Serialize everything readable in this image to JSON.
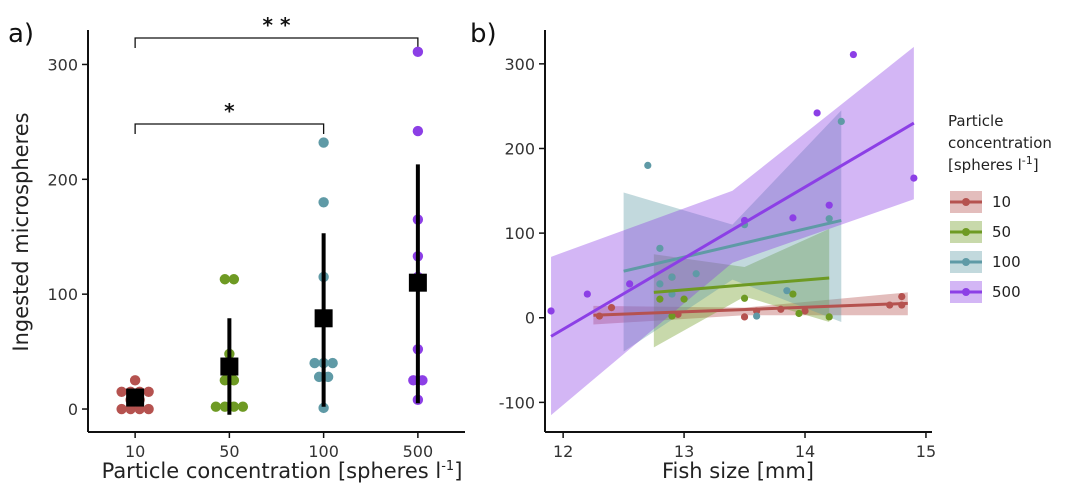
{
  "chart_data": [
    {
      "panel": "a)",
      "type": "scatter",
      "xlabel": "Particle concentration [spheres l",
      "xlabel_sup": "-1",
      "xlabel_end": "]",
      "ylabel": "Ingested microspheres",
      "categories": [
        "10",
        "50",
        "100",
        "500"
      ],
      "ylim": [
        -20,
        330
      ],
      "yticks": [
        0,
        100,
        200,
        300
      ],
      "colors": {
        "10": "#b5524f",
        "50": "#6e9a23",
        "100": "#5f9aa6",
        "500": "#8c3fe6"
      },
      "points": {
        "10": [
          0,
          0,
          0,
          0,
          8,
          8,
          15,
          15,
          15,
          15,
          25
        ],
        "50": [
          2,
          2,
          2,
          2,
          25,
          25,
          40,
          48,
          113,
          113
        ],
        "100": [
          1,
          28,
          28,
          40,
          40,
          40,
          115,
          180,
          232
        ],
        "500": [
          8,
          25,
          25,
          52,
          115,
          133,
          165,
          242,
          311
        ]
      },
      "means": [
        10,
        37,
        79,
        110
      ],
      "error_lower": [
        5,
        -5,
        2,
        5
      ],
      "error_upper": [
        15,
        79,
        153,
        213
      ],
      "significance": [
        {
          "from": "10",
          "to": "500",
          "label": "* *"
        },
        {
          "from": "10",
          "to": "100",
          "label": "*"
        }
      ]
    },
    {
      "panel": "b)",
      "type": "scatter",
      "xlabel": "Fish size [mm]",
      "xlim": [
        11.85,
        15.05
      ],
      "ylim": [
        -135,
        340
      ],
      "xticks": [
        12,
        13,
        14,
        15
      ],
      "yticks": [
        -100,
        0,
        100,
        200,
        300
      ],
      "legend": {
        "title_lines": [
          "Particle",
          "concentration",
          "[spheres l"
        ],
        "title_sup": "-1",
        "title_end": "]",
        "position": "right"
      },
      "series": [
        {
          "name": "10",
          "color": "#b5524f",
          "points": [
            [
              12.3,
              2
            ],
            [
              12.4,
              12
            ],
            [
              12.95,
              4
            ],
            [
              13.5,
              1
            ],
            [
              13.6,
              8
            ],
            [
              13.8,
              10
            ],
            [
              14.0,
              8
            ],
            [
              14.7,
              15
            ],
            [
              14.8,
              25
            ],
            [
              14.8,
              15
            ]
          ],
          "fit": [
            [
              12.25,
              3
            ],
            [
              14.85,
              17
            ]
          ],
          "band": [
            [
              12.25,
              -8,
              14
            ],
            [
              13.5,
              3,
              12
            ],
            [
              14.85,
              3,
              30
            ]
          ]
        },
        {
          "name": "50",
          "color": "#6e9a23",
          "points": [
            [
              12.9,
              2
            ],
            [
              12.8,
              22
            ],
            [
              12.9,
              48
            ],
            [
              13.0,
              22
            ],
            [
              13.5,
              23
            ],
            [
              13.9,
              28
            ],
            [
              13.95,
              5
            ],
            [
              14.2,
              1
            ]
          ],
          "fit": [
            [
              12.75,
              30
            ],
            [
              14.2,
              47
            ]
          ],
          "band": [
            [
              12.75,
              -35,
              75
            ],
            [
              13.5,
              25,
              60
            ],
            [
              14.2,
              -5,
              105
            ]
          ]
        },
        {
          "name": "100",
          "color": "#5f9aa6",
          "points": [
            [
              12.7,
              180
            ],
            [
              12.8,
              82
            ],
            [
              12.8,
              40
            ],
            [
              12.9,
              48
            ],
            [
              12.9,
              28
            ],
            [
              13.1,
              52
            ],
            [
              13.5,
              110
            ],
            [
              13.6,
              2
            ],
            [
              13.85,
              32
            ],
            [
              14.2,
              117
            ],
            [
              14.3,
              232
            ]
          ],
          "fit": [
            [
              12.5,
              55
            ],
            [
              14.3,
              115
            ]
          ],
          "band": [
            [
              12.5,
              -40,
              148
            ],
            [
              13.4,
              45,
              110
            ],
            [
              14.3,
              -5,
              245
            ]
          ]
        },
        {
          "name": "500",
          "color": "#8c3fe6",
          "points": [
            [
              11.9,
              8
            ],
            [
              12.2,
              28
            ],
            [
              12.55,
              40
            ],
            [
              13.5,
              115
            ],
            [
              13.9,
              118
            ],
            [
              14.1,
              242
            ],
            [
              14.2,
              133
            ],
            [
              14.4,
              311
            ],
            [
              14.9,
              165
            ]
          ],
          "fit": [
            [
              11.9,
              -22
            ],
            [
              14.9,
              230
            ]
          ],
          "band": [
            [
              11.9,
              -115,
              72
            ],
            [
              13.4,
              65,
              150
            ],
            [
              14.9,
              140,
              320
            ]
          ]
        }
      ]
    }
  ]
}
